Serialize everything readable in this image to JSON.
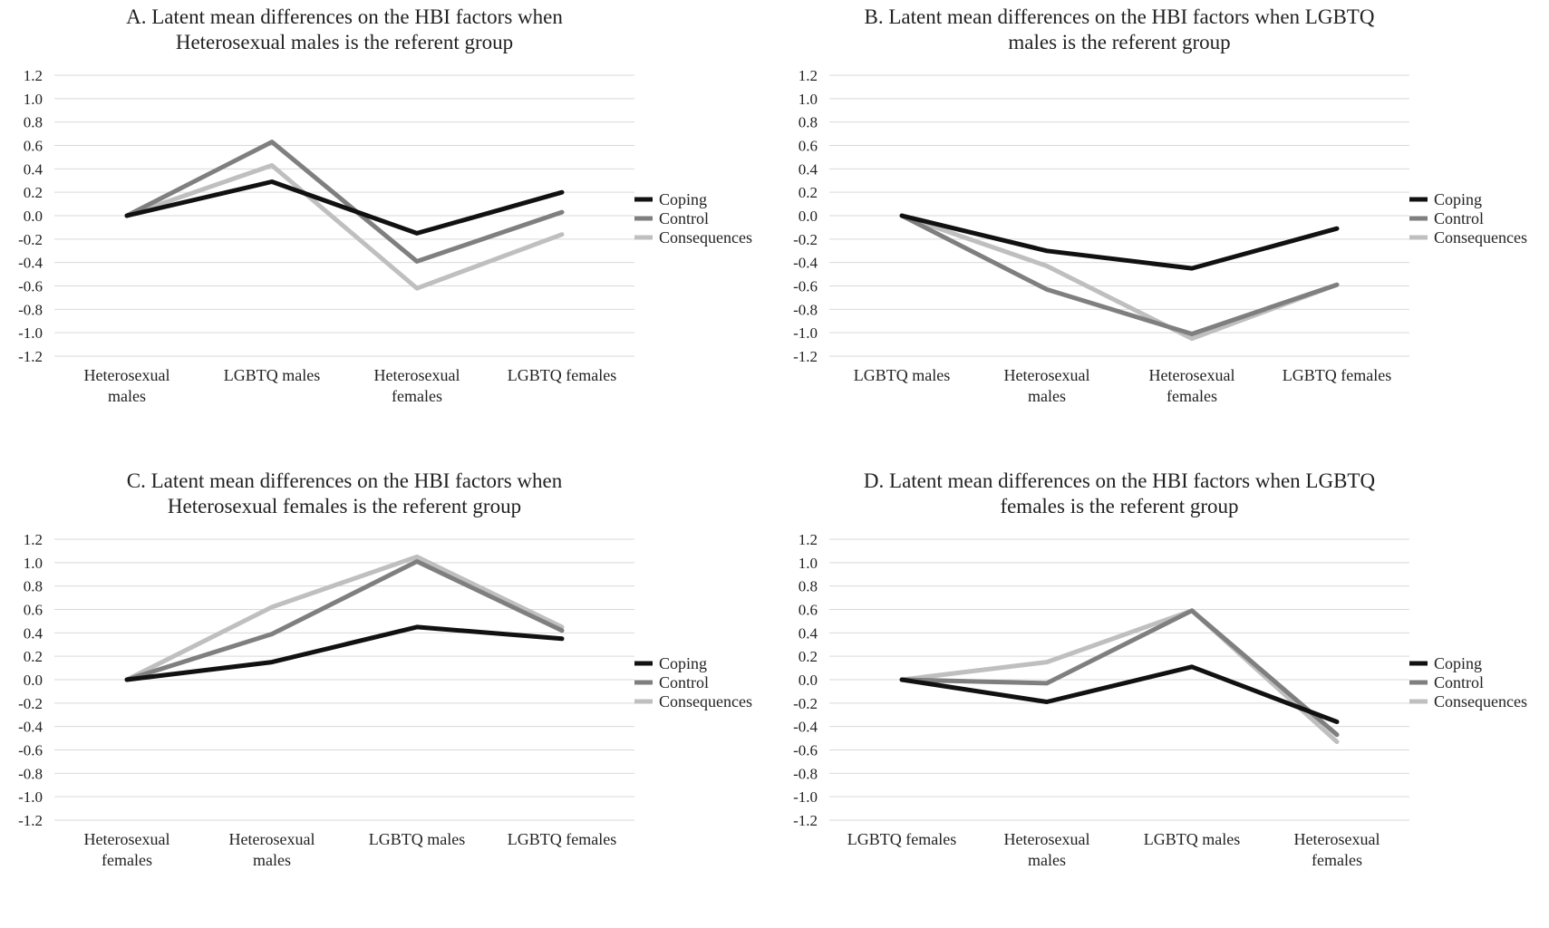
{
  "chart_data": [
    {
      "type": "line",
      "title": [
        "A. Latent mean differences on the HBI factors when",
        "Heterosexual males is the referent group"
      ],
      "categories": [
        [
          "Heterosexual",
          "males"
        ],
        [
          "LGBTQ males"
        ],
        [
          "Heterosexual",
          "females"
        ],
        [
          "LGBTQ females"
        ]
      ],
      "y_ticks": [
        "1.2",
        "1.0",
        "0.8",
        "0.6",
        "0.4",
        "0.2",
        "0.0",
        "-0.2",
        "-0.4",
        "-0.6",
        "-0.8",
        "-1.0",
        "-1.2"
      ],
      "ylim": [
        -1.2,
        1.2
      ],
      "grid": true,
      "legend_position": "right",
      "series": [
        {
          "name": "Coping",
          "color": "#111111",
          "values": [
            0.0,
            0.29,
            -0.15,
            0.2
          ]
        },
        {
          "name": "Control",
          "color": "#7f7f7f",
          "values": [
            0.0,
            0.63,
            -0.39,
            0.03
          ]
        },
        {
          "name": "Consequences",
          "color": "#bfbfbf",
          "values": [
            0.0,
            0.43,
            -0.62,
            -0.16
          ]
        }
      ]
    },
    {
      "type": "line",
      "title": [
        "B. Latent mean differences on the HBI factors when LGBTQ",
        "males is the referent group"
      ],
      "categories": [
        [
          "LGBTQ males"
        ],
        [
          "Heterosexual",
          "males"
        ],
        [
          "Heterosexual",
          "females"
        ],
        [
          "LGBTQ females"
        ]
      ],
      "y_ticks": [
        "1.2",
        "1.0",
        "0.8",
        "0.6",
        "0.4",
        "0.2",
        "0.0",
        "-0.2",
        "-0.4",
        "-0.6",
        "-0.8",
        "-1.0",
        "-1.2"
      ],
      "ylim": [
        -1.2,
        1.2
      ],
      "grid": true,
      "legend_position": "right",
      "series": [
        {
          "name": "Coping",
          "color": "#111111",
          "values": [
            0.0,
            -0.3,
            -0.45,
            -0.11
          ]
        },
        {
          "name": "Control",
          "color": "#7f7f7f",
          "values": [
            0.0,
            -0.63,
            -1.01,
            -0.59
          ]
        },
        {
          "name": "Consequences",
          "color": "#bfbfbf",
          "values": [
            0.0,
            -0.43,
            -1.05,
            -0.59
          ]
        }
      ]
    },
    {
      "type": "line",
      "title": [
        "C. Latent mean differences on the HBI factors when",
        "Heterosexual females is the referent group"
      ],
      "categories": [
        [
          "Heterosexual",
          "females"
        ],
        [
          "Heterosexual",
          "males"
        ],
        [
          "LGBTQ males"
        ],
        [
          "LGBTQ females"
        ]
      ],
      "y_ticks": [
        "1.2",
        "1.0",
        "0.8",
        "0.6",
        "0.4",
        "0.2",
        "0.0",
        "-0.2",
        "-0.4",
        "-0.6",
        "-0.8",
        "-1.0",
        "-1.2"
      ],
      "ylim": [
        -1.2,
        1.2
      ],
      "grid": true,
      "legend_position": "right",
      "series": [
        {
          "name": "Coping",
          "color": "#111111",
          "values": [
            0.0,
            0.15,
            0.45,
            0.35
          ]
        },
        {
          "name": "Control",
          "color": "#7f7f7f",
          "values": [
            0.0,
            0.39,
            1.01,
            0.42
          ]
        },
        {
          "name": "Consequences",
          "color": "#bfbfbf",
          "values": [
            0.0,
            0.62,
            1.05,
            0.45
          ]
        }
      ]
    },
    {
      "type": "line",
      "title": [
        "D. Latent mean differences on the HBI factors when LGBTQ",
        "females is the referent group"
      ],
      "categories": [
        [
          "LGBTQ females"
        ],
        [
          "Heterosexual",
          "males"
        ],
        [
          "LGBTQ males"
        ],
        [
          "Heterosexual",
          "females"
        ]
      ],
      "y_ticks": [
        "1.2",
        "1.0",
        "0.8",
        "0.6",
        "0.4",
        "0.2",
        "0.0",
        "-0.2",
        "-0.4",
        "-0.6",
        "-0.8",
        "-1.0",
        "-1.2"
      ],
      "ylim": [
        -1.2,
        1.2
      ],
      "grid": true,
      "legend_position": "right",
      "series": [
        {
          "name": "Coping",
          "color": "#111111",
          "values": [
            0.0,
            -0.19,
            0.11,
            -0.36
          ]
        },
        {
          "name": "Control",
          "color": "#7f7f7f",
          "values": [
            0.0,
            -0.03,
            0.59,
            -0.47
          ]
        },
        {
          "name": "Consequences",
          "color": "#bfbfbf",
          "values": [
            0.0,
            0.15,
            0.59,
            -0.53
          ]
        }
      ]
    }
  ]
}
